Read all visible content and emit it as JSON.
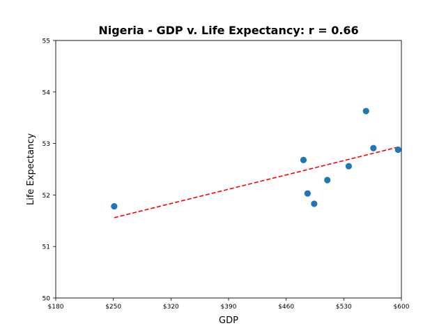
{
  "chart_data": {
    "type": "scatter",
    "title": "Nigeria - GDP v. Life Expectancy: r = 0.66",
    "xlabel": "GDP",
    "ylabel": "Life Expectancy",
    "xlim": [
      180,
      600
    ],
    "ylim": [
      50,
      55
    ],
    "x_ticks": [
      180,
      250,
      320,
      390,
      460,
      530,
      600
    ],
    "x_tick_labels": [
      "$180",
      "$250",
      "$320",
      "$390",
      "$460",
      "$530",
      "$600"
    ],
    "y_ticks": [
      50,
      51,
      52,
      53,
      54,
      55
    ],
    "y_tick_labels": [
      "50",
      "51",
      "52",
      "53",
      "54",
      "55"
    ],
    "grid": false,
    "series": [
      {
        "points": [
          {
            "x": 251,
            "y": 51.78
          },
          {
            "x": 481,
            "y": 52.68
          },
          {
            "x": 486,
            "y": 52.03
          },
          {
            "x": 494,
            "y": 51.83
          },
          {
            "x": 510,
            "y": 52.29
          },
          {
            "x": 536,
            "y": 52.56
          },
          {
            "x": 557,
            "y": 53.63
          },
          {
            "x": 566,
            "y": 52.91
          },
          {
            "x": 596,
            "y": 52.88
          }
        ],
        "color": "#1f77b4"
      }
    ],
    "trendline": {
      "x": [
        251,
        596
      ],
      "y": [
        51.56,
        52.93
      ],
      "color": "#ff0000",
      "style": "dashed"
    }
  }
}
